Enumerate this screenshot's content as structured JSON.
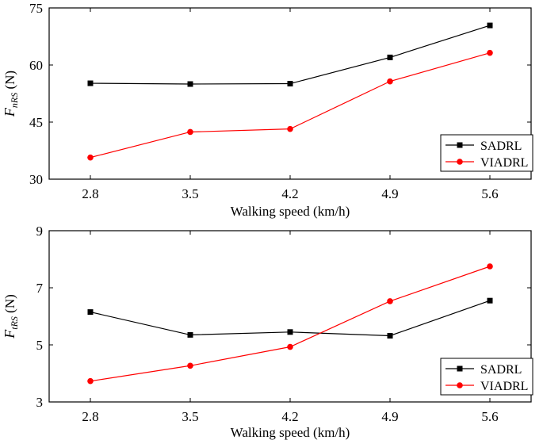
{
  "chart_data": [
    {
      "type": "line",
      "x": [
        "2.8",
        "3.5",
        "4.2",
        "4.9",
        "5.6"
      ],
      "xlabel": "Walking speed (km/h)",
      "ylabel_symbol": "F",
      "ylabel_subscript": "nRS",
      "ylabel_unit": " (N)",
      "ylim": [
        30,
        75
      ],
      "yticks": [
        30,
        45,
        60,
        75
      ],
      "grid": false,
      "legend_position": "bottom-right",
      "series": [
        {
          "name": "SADRL",
          "color": "#000000",
          "marker": "square",
          "values": [
            55.2,
            55.0,
            55.1,
            62.0,
            70.4
          ]
        },
        {
          "name": "VIADRL",
          "color": "#ff0000",
          "marker": "circle",
          "values": [
            35.7,
            42.4,
            43.2,
            55.7,
            63.2
          ]
        }
      ]
    },
    {
      "type": "line",
      "x": [
        "2.8",
        "3.5",
        "4.2",
        "4.9",
        "5.6"
      ],
      "xlabel": "Walking speed (km/h)",
      "ylabel_symbol": "F",
      "ylabel_subscript": "tRS",
      "ylabel_unit": " (N)",
      "ylim": [
        3,
        9
      ],
      "yticks": [
        3,
        5,
        7,
        9
      ],
      "grid": false,
      "legend_position": "bottom-right",
      "series": [
        {
          "name": "SADRL",
          "color": "#000000",
          "marker": "square",
          "values": [
            6.15,
            5.35,
            5.45,
            5.32,
            6.55
          ]
        },
        {
          "name": "VIADRL",
          "color": "#ff0000",
          "marker": "circle",
          "values": [
            3.73,
            4.27,
            4.93,
            6.53,
            7.75
          ]
        }
      ]
    }
  ]
}
